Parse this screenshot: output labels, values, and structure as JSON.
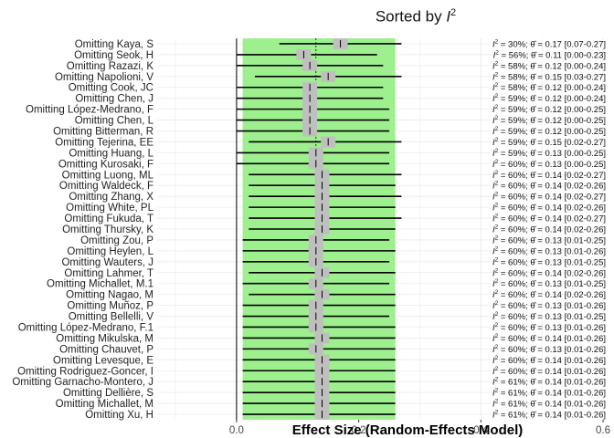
{
  "chart_data": {
    "type": "forest",
    "title": "Sorted by I²",
    "title_prefix": "Sorted by ",
    "title_var": "I",
    "title_sup": "2",
    "xlabel": "Effect Size (Random-Effects Model)",
    "xlim": [
      -0.13,
      0.6
    ],
    "xticks": [
      0.0,
      0.2,
      0.4,
      0.6
    ],
    "xtick_labels": [
      "0.0",
      "0.2",
      "0.4",
      "0.6"
    ],
    "overall_ci": [
      0.01,
      0.26
    ],
    "overall_estimate": 0.13,
    "reference_line": 0.0,
    "colors": {
      "ci_band": "#9ef08f",
      "marker": "#bfbfbf",
      "line": "#000000",
      "grid": "#ebebeb"
    },
    "studies": [
      {
        "label": "Omitting Kaya, S",
        "i2": "30%",
        "est": 0.17,
        "lo": 0.07,
        "hi": 0.27,
        "text": "= 30%; θ̂ = 0.17 [0.07-0.27]"
      },
      {
        "label": "Omitting Seok, H",
        "i2": "56%",
        "est": 0.11,
        "lo": 0.0,
        "hi": 0.23,
        "text": "= 56%; θ̂ = 0.11 [0.00-0.23]"
      },
      {
        "label": "Omitting Razazi, K",
        "i2": "58%",
        "est": 0.12,
        "lo": 0.0,
        "hi": 0.24,
        "text": "= 58%; θ̂ = 0.12 [0.00-0.24]"
      },
      {
        "label": "Omitting Napolioni, V",
        "i2": "58%",
        "est": 0.15,
        "lo": 0.03,
        "hi": 0.27,
        "text": "= 58%; θ̂ = 0.15 [0.03-0.27]"
      },
      {
        "label": "Omitting Cook, JC",
        "i2": "58%",
        "est": 0.12,
        "lo": 0.0,
        "hi": 0.24,
        "text": "= 58%; θ̂ = 0.12 [0.00-0.24]"
      },
      {
        "label": "Omitting Chen, J",
        "i2": "59%",
        "est": 0.12,
        "lo": 0.0,
        "hi": 0.24,
        "text": "= 59%; θ̂ = 0.12 [0.00-0.24]"
      },
      {
        "label": "Omitting López-Medrano, F",
        "i2": "59%",
        "est": 0.12,
        "lo": 0.0,
        "hi": 0.25,
        "text": "= 59%; θ̂ = 0.12 [0.00-0.25]"
      },
      {
        "label": "Omitting Chen, L",
        "i2": "59%",
        "est": 0.12,
        "lo": 0.0,
        "hi": 0.25,
        "text": "= 59%; θ̂ = 0.12 [0.00-0.25]"
      },
      {
        "label": "Omitting Bitterman, R",
        "i2": "59%",
        "est": 0.12,
        "lo": 0.0,
        "hi": 0.25,
        "text": "= 59%; θ̂ = 0.12 [0.00-0.25]"
      },
      {
        "label": "Omitting Tejerina, EE",
        "i2": "59%",
        "est": 0.15,
        "lo": 0.02,
        "hi": 0.27,
        "text": "= 59%; θ̂ = 0.15 [0.02-0.27]"
      },
      {
        "label": "Omitting Huang, L",
        "i2": "59%",
        "est": 0.13,
        "lo": 0.0,
        "hi": 0.25,
        "text": "= 59%; θ̂ = 0.13 [0.00-0.25]"
      },
      {
        "label": "Omitting Kurosaki, F",
        "i2": "60%",
        "est": 0.13,
        "lo": 0.0,
        "hi": 0.25,
        "text": "= 60%; θ̂ = 0.13 [0.00-0.25]"
      },
      {
        "label": "Omitting Luong, ML",
        "i2": "60%",
        "est": 0.14,
        "lo": 0.02,
        "hi": 0.27,
        "text": "= 60%; θ̂ = 0.14 [0.02-0.27]"
      },
      {
        "label": "Omitting Waldeck, F",
        "i2": "60%",
        "est": 0.14,
        "lo": 0.02,
        "hi": 0.26,
        "text": "= 60%; θ̂ = 0.14 [0.02-0.26]"
      },
      {
        "label": "Omitting Zhang, X",
        "i2": "60%",
        "est": 0.14,
        "lo": 0.02,
        "hi": 0.27,
        "text": "= 60%; θ̂ = 0.14 [0.02-0.27]"
      },
      {
        "label": "Omitting White, PL",
        "i2": "60%",
        "est": 0.14,
        "lo": 0.02,
        "hi": 0.26,
        "text": "= 60%; θ̂ = 0.14 [0.02-0.26]"
      },
      {
        "label": "Omitting Fukuda, T",
        "i2": "60%",
        "est": 0.14,
        "lo": 0.02,
        "hi": 0.27,
        "text": "= 60%; θ̂ = 0.14 [0.02-0.27]"
      },
      {
        "label": "Omitting Thursky, K",
        "i2": "60%",
        "est": 0.14,
        "lo": 0.02,
        "hi": 0.26,
        "text": "= 60%; θ̂ = 0.14 [0.02-0.26]"
      },
      {
        "label": "Omitting Zou, P",
        "i2": "60%",
        "est": 0.13,
        "lo": 0.01,
        "hi": 0.25,
        "text": "= 60%; θ̂ = 0.13 [0.01-0.25]"
      },
      {
        "label": "Omitting Heylen, L",
        "i2": "60%",
        "est": 0.13,
        "lo": 0.01,
        "hi": 0.26,
        "text": "= 60%; θ̂ = 0.13 [0.01-0.26]"
      },
      {
        "label": "Omitting Wauters, J",
        "i2": "60%",
        "est": 0.13,
        "lo": 0.01,
        "hi": 0.25,
        "text": "= 60%; θ̂ = 0.13 [0.01-0.25]"
      },
      {
        "label": "Omitting Lahmer, T",
        "i2": "60%",
        "est": 0.14,
        "lo": 0.02,
        "hi": 0.26,
        "text": "= 60%; θ̂ = 0.14 [0.02-0.26]"
      },
      {
        "label": "Omitting Michallet, M.1",
        "i2": "60%",
        "est": 0.13,
        "lo": 0.01,
        "hi": 0.25,
        "text": "= 60%; θ̂ = 0.13 [0.01-0.25]"
      },
      {
        "label": "Omitting Nagao, M",
        "i2": "60%",
        "est": 0.14,
        "lo": 0.02,
        "hi": 0.26,
        "text": "= 60%; θ̂ = 0.14 [0.02-0.26]"
      },
      {
        "label": "Omitting Muñoz, P",
        "i2": "60%",
        "est": 0.13,
        "lo": 0.01,
        "hi": 0.26,
        "text": "= 60%; θ̂ = 0.13 [0.01-0.26]"
      },
      {
        "label": "Omitting Bellelli, V",
        "i2": "60%",
        "est": 0.13,
        "lo": 0.01,
        "hi": 0.25,
        "text": "= 60%; θ̂ = 0.13 [0.01-0.25]"
      },
      {
        "label": "Omitting López-Medrano, F.1",
        "i2": "60%",
        "est": 0.13,
        "lo": 0.01,
        "hi": 0.26,
        "text": "= 60%; θ̂ = 0.13 [0.01-0.26]"
      },
      {
        "label": "Omitting Mikulska, M",
        "i2": "60%",
        "est": 0.14,
        "lo": 0.01,
        "hi": 0.26,
        "text": "= 60%; θ̂ = 0.14 [0.01-0.26]"
      },
      {
        "label": "Omitting Chauvet, P",
        "i2": "60%",
        "est": 0.13,
        "lo": 0.01,
        "hi": 0.26,
        "text": "= 60%; θ̂ = 0.13 [0.01-0.26]"
      },
      {
        "label": "Omitting Levesque, E",
        "i2": "60%",
        "est": 0.14,
        "lo": 0.01,
        "hi": 0.26,
        "text": "= 60%; θ̂ = 0.14 [0.01-0.26]"
      },
      {
        "label": "Omitting Rodriguez-Goncer, I",
        "i2": "60%",
        "est": 0.14,
        "lo": 0.01,
        "hi": 0.26,
        "text": "= 60%; θ̂ = 0.14 [0.01-0.26]"
      },
      {
        "label": "Omitting Garnacho-Montero, J",
        "i2": "61%",
        "est": 0.14,
        "lo": 0.01,
        "hi": 0.26,
        "text": "= 61%; θ̂ = 0.14 [0.01-0.26]"
      },
      {
        "label": "Omitting Dellière, S",
        "i2": "61%",
        "est": 0.14,
        "lo": 0.01,
        "hi": 0.26,
        "text": "= 61%; θ̂ = 0.14 [0.01-0.26]"
      },
      {
        "label": "Omitting Michallet, M",
        "i2": "61%",
        "est": 0.14,
        "lo": 0.01,
        "hi": 0.26,
        "text": "= 61%; θ̂ = 0.14 [0.01-0.26]"
      },
      {
        "label": "Omitting Xu, H",
        "i2": "61%",
        "est": 0.14,
        "lo": 0.01,
        "hi": 0.26,
        "text": "= 61%; θ̂ = 0.14 [0.01-0.26]"
      }
    ]
  }
}
